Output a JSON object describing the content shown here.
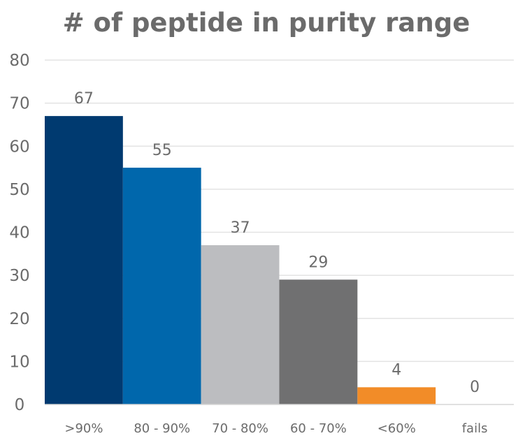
{
  "chart_data": {
    "type": "bar",
    "title": "# of peptide in purity range",
    "categories": [
      ">90%",
      "80 - 90%",
      "70 - 80%",
      "60 - 70%",
      "<60%",
      "fails"
    ],
    "values": [
      67,
      55,
      37,
      29,
      4,
      0
    ],
    "data_labels": [
      "67",
      "55",
      "37",
      "29",
      "4",
      "0"
    ],
    "colors": [
      "#003a70",
      "#0067ac",
      "#bcbdc0",
      "#707071",
      "#f28c28",
      "#ffffff"
    ],
    "xlabel": "",
    "ylabel": "",
    "ylim": [
      0,
      80
    ],
    "yticks": [
      0,
      10,
      20,
      30,
      40,
      50,
      60,
      70,
      80
    ],
    "grid": true,
    "legend": "none"
  }
}
